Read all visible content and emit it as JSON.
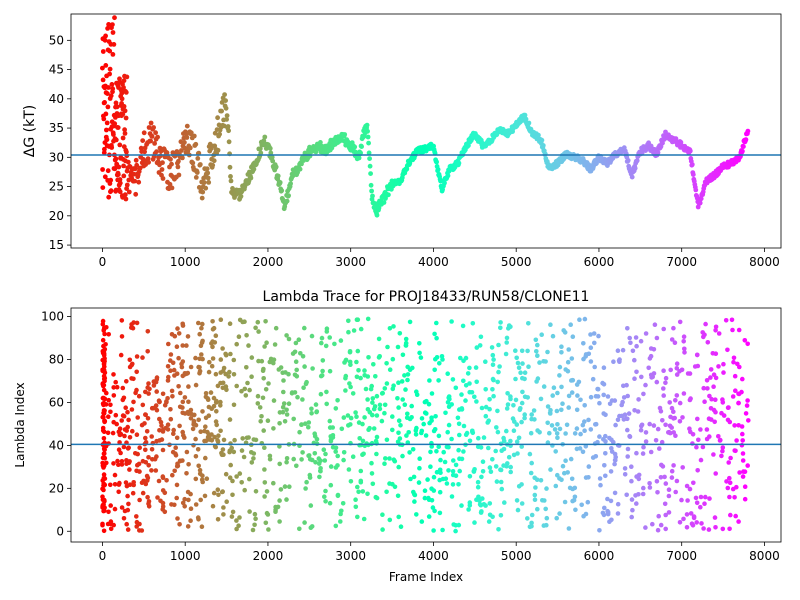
{
  "chart_data": [
    {
      "type": "scatter",
      "title": "",
      "xlabel": "",
      "ylabel": "ΔG (kT)",
      "xlim": [
        -380,
        8200
      ],
      "ylim": [
        14.5,
        54.5
      ],
      "xticks": [
        0,
        1000,
        2000,
        3000,
        4000,
        5000,
        6000,
        7000,
        8000
      ],
      "yticks": [
        15,
        20,
        25,
        30,
        35,
        40,
        45,
        50
      ],
      "hline": 30.4,
      "hline_color": "#1f77b4",
      "colormap": "rainbow (red at early frames to violet at late frames)",
      "n_frames": 7800,
      "trace_anchors": [
        [
          300,
          27
        ],
        [
          400,
          26
        ],
        [
          500,
          31
        ],
        [
          600,
          33
        ],
        [
          700,
          30
        ],
        [
          800,
          27
        ],
        [
          900,
          29
        ],
        [
          1000,
          33
        ],
        [
          1100,
          31
        ],
        [
          1200,
          26
        ],
        [
          1300,
          29
        ],
        [
          1400,
          34
        ],
        [
          1480,
          39
        ],
        [
          1520,
          35
        ],
        [
          1560,
          24
        ],
        [
          1650,
          23.5
        ],
        [
          1750,
          26
        ],
        [
          1850,
          29
        ],
        [
          1950,
          33
        ],
        [
          2050,
          30
        ],
        [
          2150,
          25
        ],
        [
          2200,
          21.5
        ],
        [
          2300,
          27
        ],
        [
          2400,
          29
        ],
        [
          2500,
          31
        ],
        [
          2600,
          32
        ],
        [
          2700,
          31
        ],
        [
          2800,
          33
        ],
        [
          2900,
          33.5
        ],
        [
          3000,
          32
        ],
        [
          3100,
          30
        ],
        [
          3150,
          34
        ],
        [
          3200,
          35
        ],
        [
          3260,
          23
        ],
        [
          3300,
          20.5
        ],
        [
          3400,
          23
        ],
        [
          3500,
          25.5
        ],
        [
          3600,
          26
        ],
        [
          3700,
          29
        ],
        [
          3800,
          31
        ],
        [
          3900,
          31.5
        ],
        [
          4000,
          32
        ],
        [
          4050,
          28
        ],
        [
          4100,
          24.5
        ],
        [
          4200,
          28
        ],
        [
          4300,
          29
        ],
        [
          4400,
          32
        ],
        [
          4500,
          34
        ],
        [
          4600,
          32
        ],
        [
          4700,
          33
        ],
        [
          4800,
          35
        ],
        [
          4900,
          34
        ],
        [
          5000,
          35.5
        ],
        [
          5100,
          37
        ],
        [
          5200,
          34
        ],
        [
          5300,
          33
        ],
        [
          5400,
          28
        ],
        [
          5500,
          29
        ],
        [
          5600,
          30.5
        ],
        [
          5700,
          30
        ],
        [
          5800,
          29.5
        ],
        [
          5900,
          28
        ],
        [
          6000,
          30
        ],
        [
          6100,
          29
        ],
        [
          6200,
          30.5
        ],
        [
          6300,
          31.5
        ],
        [
          6400,
          27
        ],
        [
          6500,
          31
        ],
        [
          6600,
          32
        ],
        [
          6700,
          30.5
        ],
        [
          6800,
          34
        ],
        [
          6900,
          33
        ],
        [
          7000,
          32
        ],
        [
          7100,
          31
        ],
        [
          7200,
          21.5
        ],
        [
          7300,
          26
        ],
        [
          7400,
          27
        ],
        [
          7500,
          28.5
        ],
        [
          7600,
          29
        ],
        [
          7700,
          30
        ],
        [
          7800,
          34.5
        ]
      ]
    },
    {
      "type": "scatter",
      "title": "Lambda Trace for PROJ18433/RUN58/CLONE11",
      "xlabel": "Frame Index",
      "ylabel": "Lambda Index",
      "xlim": [
        -380,
        8200
      ],
      "ylim": [
        -5,
        104
      ],
      "xticks": [
        0,
        1000,
        2000,
        3000,
        4000,
        5000,
        6000,
        7000,
        8000
      ],
      "yticks": [
        0,
        20,
        40,
        60,
        80,
        100
      ],
      "hline": 40.5,
      "hline_color": "#1f77b4",
      "colormap": "rainbow (red at early frames to violet at late frames)",
      "n_frames": 7800
    }
  ]
}
